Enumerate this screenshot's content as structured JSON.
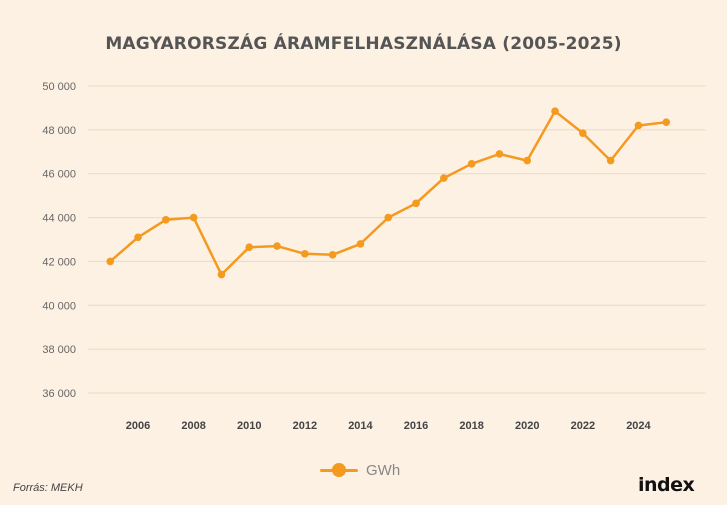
{
  "chart_data": {
    "type": "line",
    "title": "MAGYARORSZÁG ÁRAMFELHASZNÁLÁSA (2005-2025)",
    "xlabel": "",
    "ylabel": "",
    "x": [
      2005,
      2006,
      2007,
      2008,
      2009,
      2010,
      2011,
      2012,
      2013,
      2014,
      2015,
      2016,
      2017,
      2018,
      2019,
      2020,
      2021,
      2022,
      2023,
      2024,
      2025
    ],
    "series": [
      {
        "name": "GWh",
        "values": [
          42000,
          43100,
          43900,
          44000,
          41400,
          42650,
          42700,
          42350,
          42300,
          42800,
          44000,
          44650,
          45800,
          46450,
          46900,
          46600,
          48850,
          47850,
          46600,
          48200,
          48350
        ]
      }
    ],
    "ylim": [
      36000,
      50000
    ],
    "yticks": [
      36000,
      38000,
      40000,
      42000,
      44000,
      46000,
      48000,
      50000
    ],
    "ytick_labels": [
      "36 000",
      "38 000",
      "40 000",
      "42 000",
      "44 000",
      "46 000",
      "48 000",
      "50 000"
    ],
    "xticks": [
      2006,
      2008,
      2010,
      2012,
      2014,
      2016,
      2018,
      2020,
      2022,
      2024
    ],
    "xtick_labels": [
      "2006",
      "2008",
      "2010",
      "2012",
      "2014",
      "2016",
      "2018",
      "2020",
      "2022",
      "2024"
    ],
    "grid": true,
    "legend_position": "bottom",
    "line_color": "#f39a1f"
  },
  "source": "Forrás: MEKH",
  "logo": "index"
}
